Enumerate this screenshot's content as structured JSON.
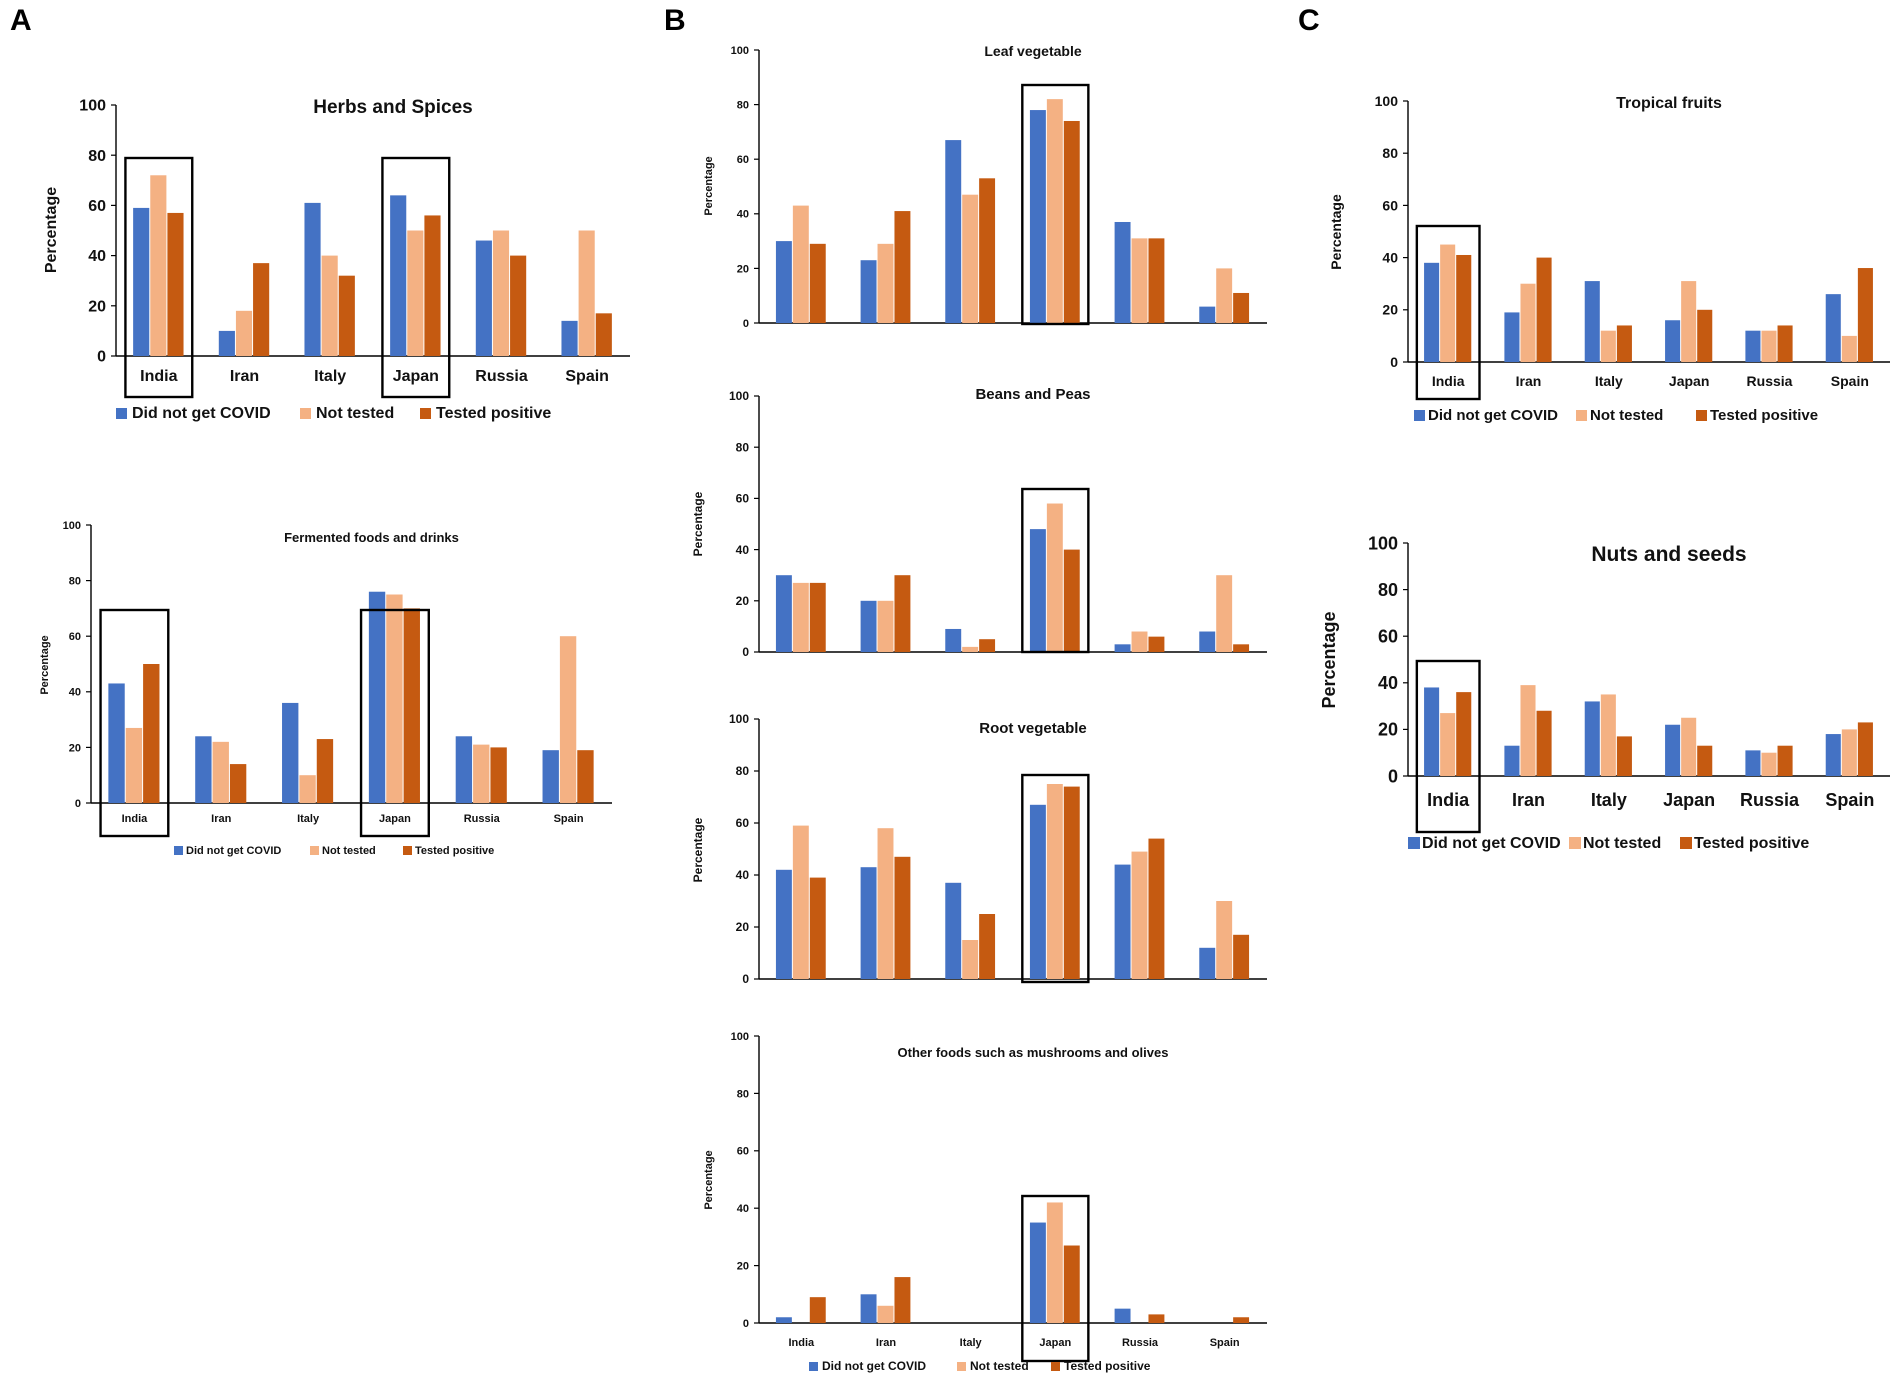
{
  "panel_labels": [
    "A",
    "B",
    "C"
  ],
  "colors": {
    "did_not_get_covid": "#4472C4",
    "not_tested": "#F4B183",
    "tested_positive": "#C55A11",
    "axis": "#000000"
  },
  "legend_labels": [
    "Did not get COVID",
    "Not tested",
    "Tested positive"
  ],
  "chart_data": [
    {
      "panel": "A",
      "type": "bar",
      "title": "Herbs and Spices",
      "xlabel": "",
      "ylabel": "Percentage",
      "ylim": [
        0,
        100
      ],
      "yticks": [
        "0",
        "20",
        "40",
        "60",
        "80",
        "100"
      ],
      "categories": [
        "India",
        "Iran",
        "Italy",
        "Japan",
        "Russia",
        "Spain"
      ],
      "highlighted": [
        "India",
        "Japan"
      ],
      "series": [
        {
          "name": "Did not get COVID",
          "values": [
            59,
            10,
            61,
            64,
            46,
            14
          ]
        },
        {
          "name": "Not tested",
          "values": [
            72,
            18,
            40,
            50,
            50,
            50
          ]
        },
        {
          "name": "Tested positive",
          "values": [
            57,
            37,
            32,
            56,
            40,
            17
          ]
        }
      ]
    },
    {
      "panel": "A",
      "type": "bar",
      "title": "Fermented foods and drinks",
      "xlabel": "",
      "ylabel": "Percentage",
      "ylim": [
        0,
        100
      ],
      "yticks": [
        "0",
        "20",
        "40",
        "60",
        "80",
        "100"
      ],
      "categories": [
        "India",
        "Iran",
        "Italy",
        "Japan",
        "Russia",
        "Spain"
      ],
      "highlighted": [
        "India",
        "Japan"
      ],
      "series": [
        {
          "name": "Did not get COVID",
          "values": [
            43,
            24,
            36,
            76,
            24,
            19
          ]
        },
        {
          "name": "Not tested",
          "values": [
            27,
            22,
            10,
            75,
            21,
            60
          ]
        },
        {
          "name": "Tested positive",
          "values": [
            50,
            14,
            23,
            70,
            20,
            19
          ]
        }
      ]
    },
    {
      "panel": "B",
      "type": "bar",
      "title": "Leaf vegetable",
      "xlabel": "",
      "ylabel": "Percentage",
      "ylim": [
        0,
        100
      ],
      "yticks": [
        "0",
        "20",
        "40",
        "60",
        "80",
        "100"
      ],
      "categories": [
        "India",
        "Iran",
        "Italy",
        "Japan",
        "Russia",
        "Spain"
      ],
      "highlighted": [
        "Japan"
      ],
      "series": [
        {
          "name": "Did not get COVID",
          "values": [
            30,
            23,
            67,
            78,
            37,
            6
          ]
        },
        {
          "name": "Not tested",
          "values": [
            43,
            29,
            47,
            82,
            31,
            20
          ]
        },
        {
          "name": "Tested positive",
          "values": [
            29,
            41,
            53,
            74,
            31,
            11
          ]
        }
      ]
    },
    {
      "panel": "B",
      "type": "bar",
      "title": "Beans and Peas",
      "xlabel": "",
      "ylabel": "Percentage",
      "ylim": [
        0,
        100
      ],
      "yticks": [
        "0",
        "20",
        "40",
        "60",
        "80",
        "100"
      ],
      "categories": [
        "India",
        "Iran",
        "Italy",
        "Japan",
        "Russia",
        "Spain"
      ],
      "highlighted": [
        "Japan"
      ],
      "series": [
        {
          "name": "Did not get COVID",
          "values": [
            30,
            20,
            9,
            48,
            3,
            8
          ]
        },
        {
          "name": "Not tested",
          "values": [
            27,
            20,
            2,
            58,
            8,
            30
          ]
        },
        {
          "name": "Tested positive",
          "values": [
            27,
            30,
            5,
            40,
            6,
            3
          ]
        }
      ]
    },
    {
      "panel": "B",
      "type": "bar",
      "title": "Root vegetable",
      "xlabel": "",
      "ylabel": "Percentage",
      "ylim": [
        0,
        100
      ],
      "yticks": [
        "0",
        "20",
        "40",
        "60",
        "80",
        "100"
      ],
      "categories": [
        "India",
        "Iran",
        "Italy",
        "Japan",
        "Russia",
        "Spain"
      ],
      "highlighted": [
        "Japan"
      ],
      "series": [
        {
          "name": "Did not get COVID",
          "values": [
            42,
            43,
            37,
            67,
            44,
            12
          ]
        },
        {
          "name": "Not tested",
          "values": [
            59,
            58,
            15,
            75,
            49,
            30
          ]
        },
        {
          "name": "Tested positive",
          "values": [
            39,
            47,
            25,
            74,
            54,
            17
          ]
        }
      ]
    },
    {
      "panel": "B",
      "type": "bar",
      "title": "Other foods such as mushrooms and olives",
      "xlabel": "",
      "ylabel": "Percentage",
      "ylim": [
        0,
        100
      ],
      "yticks": [
        "0",
        "20",
        "40",
        "60",
        "80",
        "100"
      ],
      "categories": [
        "India",
        "Iran",
        "Italy",
        "Japan",
        "Russia",
        "Spain"
      ],
      "highlighted": [
        "Japan"
      ],
      "series": [
        {
          "name": "Did not get COVID",
          "values": [
            2,
            10,
            0,
            35,
            5,
            0
          ]
        },
        {
          "name": "Not tested",
          "values": [
            0,
            6,
            0,
            42,
            0,
            0
          ]
        },
        {
          "name": "Tested positive",
          "values": [
            9,
            16,
            0,
            27,
            3,
            2
          ]
        }
      ]
    },
    {
      "panel": "C",
      "type": "bar",
      "title": "Tropical fruits",
      "xlabel": "",
      "ylabel": "Percentage",
      "ylim": [
        0,
        100
      ],
      "yticks": [
        "0",
        "20",
        "40",
        "60",
        "80",
        "100"
      ],
      "categories": [
        "India",
        "Iran",
        "Italy",
        "Japan",
        "Russia",
        "Spain"
      ],
      "highlighted": [
        "India"
      ],
      "series": [
        {
          "name": "Did not get COVID",
          "values": [
            38,
            19,
            31,
            16,
            12,
            26
          ]
        },
        {
          "name": "Not tested",
          "values": [
            45,
            30,
            12,
            31,
            12,
            10
          ]
        },
        {
          "name": "Tested positive",
          "values": [
            41,
            40,
            14,
            20,
            14,
            36
          ]
        }
      ]
    },
    {
      "panel": "C",
      "type": "bar",
      "title": "Nuts and seeds",
      "xlabel": "",
      "ylabel": "Percentage",
      "ylim": [
        0,
        100
      ],
      "yticks": [
        "0",
        "20",
        "40",
        "60",
        "80",
        "100"
      ],
      "categories": [
        "India",
        "Iran",
        "Italy",
        "Japan",
        "Russia",
        "Spain"
      ],
      "highlighted": [
        "India"
      ],
      "series": [
        {
          "name": "Did not get COVID",
          "values": [
            38,
            13,
            32,
            22,
            11,
            18
          ]
        },
        {
          "name": "Not tested",
          "values": [
            27,
            39,
            35,
            25,
            10,
            20
          ]
        },
        {
          "name": "Tested positive",
          "values": [
            36,
            28,
            17,
            13,
            13,
            23
          ]
        }
      ]
    }
  ]
}
